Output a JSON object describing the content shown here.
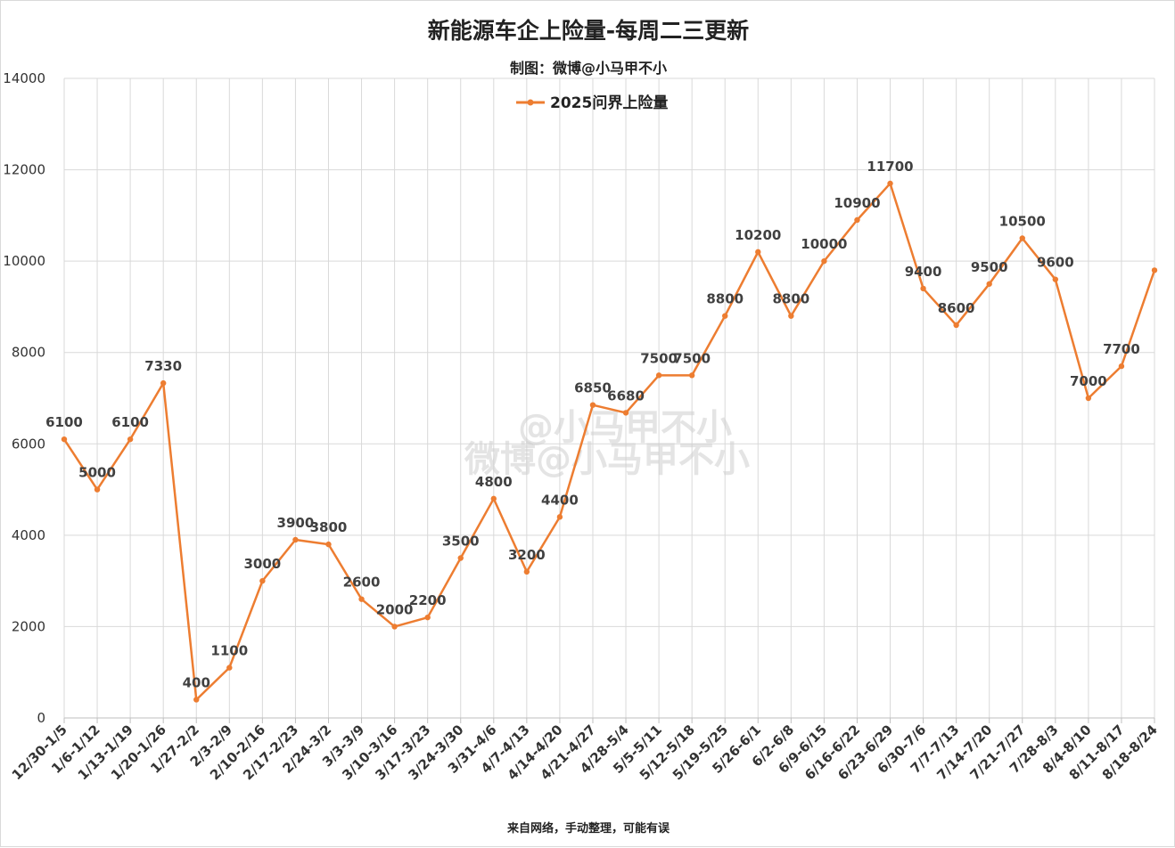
{
  "chart_data": {
    "type": "line",
    "title": "新能源车企上险量-每周二三更新",
    "subtitle": "制图：微博@小马甲不小",
    "footer": "来自网络，手动整理，可能有误",
    "watermark": [
      "@小马甲不小",
      "微博@小马甲不小"
    ],
    "xlabel": "",
    "ylabel": "",
    "ylim": [
      0,
      14000
    ],
    "yticks": [
      0,
      2000,
      4000,
      6000,
      8000,
      10000,
      12000,
      14000
    ],
    "grid": true,
    "legend_position": "top-center",
    "colors": {
      "line": "#ED7D31",
      "grid": "#d9d9d9",
      "text": "#404040"
    },
    "categories": [
      "12/30-1/5",
      "1/6-1/12",
      "1/13-1/19",
      "1/20-1/26",
      "1/27-2/2",
      "2/3-2/9",
      "2/10-2/16",
      "2/17-2/23",
      "2/24-3/2",
      "3/3-3/9",
      "3/10-3/16",
      "3/17-3/23",
      "3/24-3/30",
      "3/31-4/6",
      "4/7-4/13",
      "4/14-4/20",
      "4/21-4/27",
      "4/28-5/4",
      "5/5-5/11",
      "5/12-5/18",
      "5/19-5/25",
      "5/26-6/1",
      "6/2-6/8",
      "6/9-6/15",
      "6/16-6/22",
      "6/23-6/29",
      "6/30-7/6",
      "7/7-7/13",
      "7/14-7/20",
      "7/21-7/27",
      "7/28-8/3",
      "8/4-8/10",
      "8/11-8/17",
      "8/18-8/24"
    ],
    "series": [
      {
        "name": "2025问界上险量",
        "values": [
          6100,
          5000,
          6100,
          7330,
          400,
          1100,
          3000,
          3900,
          3800,
          2600,
          2000,
          2200,
          3500,
          4800,
          3200,
          4400,
          6850,
          6680,
          7500,
          7500,
          8800,
          10200,
          8800,
          10000,
          10900,
          11700,
          9400,
          8600,
          9500,
          10500,
          9600,
          7000,
          7700,
          9800
        ],
        "labels": [
          "6100",
          "5000",
          "6100",
          "7330",
          "400",
          "1100",
          "3000",
          "3900",
          "3800",
          "2600",
          "2000",
          "2200",
          "3500",
          "4800",
          "3200",
          "4400",
          "6850",
          "6680",
          "7500",
          "7500",
          "8800",
          "10200",
          "8800",
          "10000",
          "10900",
          "11700",
          "9400",
          "8600",
          "9500",
          "10500",
          "9600",
          "7000",
          "7700",
          ""
        ]
      }
    ]
  }
}
